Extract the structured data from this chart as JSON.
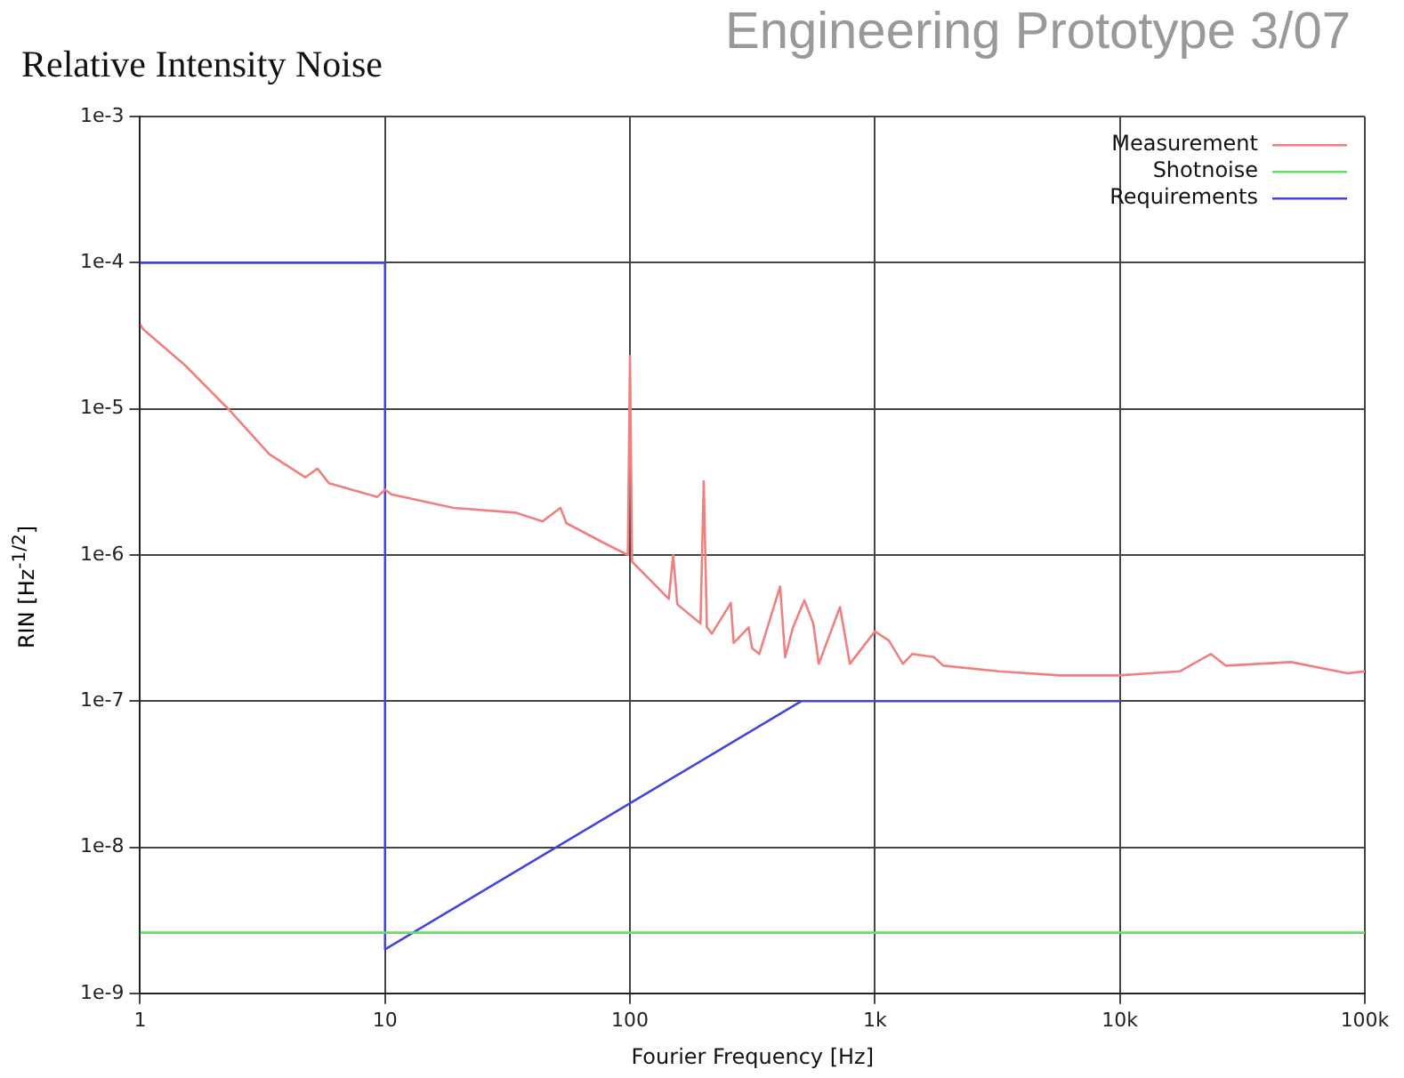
{
  "chart_data": {
    "type": "line",
    "title": "Relative Intensity Noise",
    "subtitle": "Engineering Prototype 3/07",
    "xlabel": "Fourier Frequency [Hz]",
    "ylabel": "RIN [Hz$^{-1/2}$]",
    "log": "xy",
    "grid": true,
    "legend": "top right",
    "marker": "none",
    "line_style": "solid",
    "xlim": [
      1,
      100000
    ],
    "ylim": [
      1e-09,
      0.001
    ],
    "xticks": [
      1,
      10,
      100,
      {
        "value": 1000,
        "label": "1k"
      },
      {
        "value": 10000,
        "label": "10k"
      },
      {
        "value": 100000,
        "label": "100k"
      }
    ],
    "yticks": [
      {
        "value": 1e-09,
        "label": "1e-9"
      },
      {
        "value": 1e-08,
        "label": "1e-8"
      },
      {
        "value": 1e-07,
        "label": "1e-7"
      },
      {
        "value": 1e-06,
        "label": "1e-6"
      },
      {
        "value": 1e-05,
        "label": "1e-5"
      },
      {
        "value": 0.0001,
        "label": "1e-4"
      },
      {
        "value": 0.001,
        "label": "1e-3"
      }
    ],
    "series": [
      {
        "name": "Measurement",
        "color": "#f08080",
        "x": [
          1,
          1.03,
          1.52,
          2.29,
          3.37,
          4.72,
          5.3,
          5.9,
          9.3,
          10,
          10.6,
          19,
          34,
          44,
          52,
          55,
          79,
          98,
          100,
          102,
          144,
          150,
          156,
          194,
          200,
          206,
          216,
          258,
          265,
          305,
          315,
          337,
          410,
          430,
          463,
          515,
          560,
          590,
          720,
          790,
          1000,
          1140,
          1300,
          1420,
          1740,
          1900,
          3200,
          5700,
          9900,
          17600,
          23500,
          27000,
          50000,
          85000,
          100000
        ],
        "values": [
          3.8e-05,
          3.5e-05,
          2e-05,
          1e-05,
          4.9e-06,
          3.4e-06,
          3.9e-06,
          3.1e-06,
          2.5e-06,
          2.8e-06,
          2.6e-06,
          2.1e-06,
          1.95e-06,
          1.7e-06,
          2.1e-06,
          1.65e-06,
          1.2e-06,
          1e-06,
          2.3e-05,
          9e-07,
          5e-07,
          1e-06,
          4.6e-07,
          3.4e-07,
          3.2e-06,
          3.2e-07,
          2.9e-07,
          4.7e-07,
          2.5e-07,
          3.2e-07,
          2.3e-07,
          2.1e-07,
          6.1e-07,
          2e-07,
          3.2e-07,
          4.9e-07,
          3.4e-07,
          1.8e-07,
          4.4e-07,
          1.8e-07,
          3e-07,
          2.6e-07,
          1.8e-07,
          2.1e-07,
          2e-07,
          1.75e-07,
          1.6e-07,
          1.5e-07,
          1.5e-07,
          1.6e-07,
          2.1e-07,
          1.75e-07,
          1.85e-07,
          1.55e-07,
          1.6e-07
        ]
      },
      {
        "name": "Shotnoise",
        "color": "#66dd66",
        "x": [
          1,
          100000
        ],
        "values": [
          2.6e-09,
          2.6e-09
        ]
      },
      {
        "name": "Requirements",
        "color": "#4444dd",
        "x": [
          1,
          10,
          10,
          500,
          10000
        ],
        "values": [
          0.0001,
          0.0001,
          2e-09,
          1e-07,
          1e-07
        ]
      }
    ]
  }
}
